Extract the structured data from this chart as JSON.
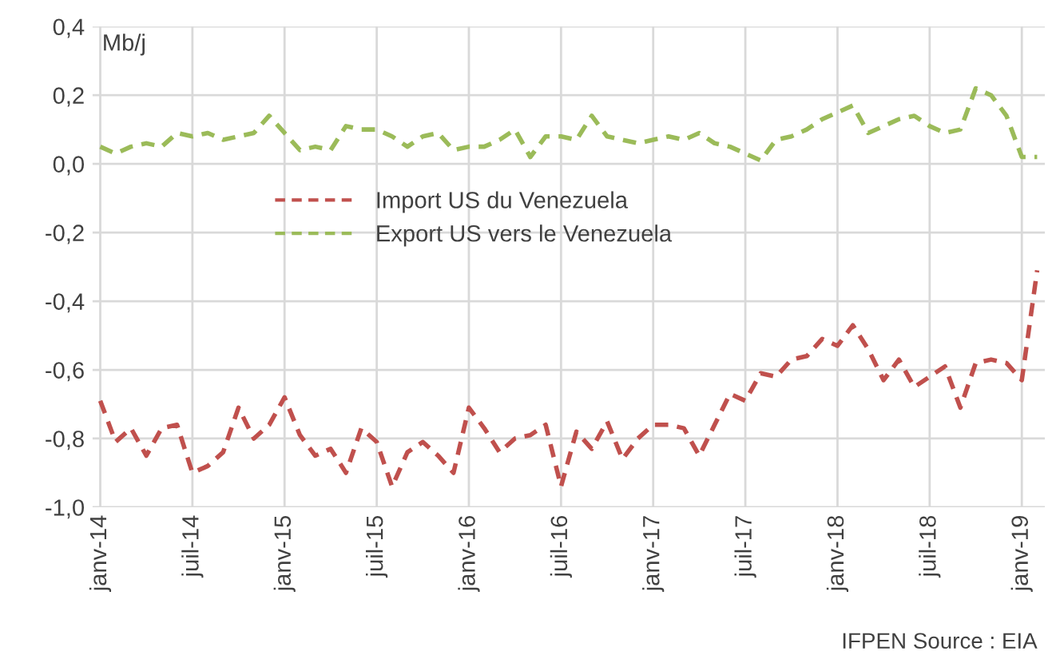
{
  "chart_data": {
    "type": "line",
    "ylabel": "Mb/j",
    "categories": [
      "janv-14",
      null,
      null,
      null,
      null,
      null,
      "juil-14",
      null,
      null,
      null,
      null,
      null,
      "janv-15",
      null,
      null,
      null,
      null,
      null,
      "juil-15",
      null,
      null,
      null,
      null,
      null,
      "janv-16",
      null,
      null,
      null,
      null,
      null,
      "juil-16",
      null,
      null,
      null,
      null,
      null,
      "janv-17",
      null,
      null,
      null,
      null,
      null,
      "juil-17",
      null,
      null,
      null,
      null,
      null,
      "janv-18",
      null,
      null,
      null,
      null,
      null,
      "juil-18",
      null,
      null,
      null,
      null,
      null,
      "janv-19",
      null
    ],
    "series": [
      {
        "name": "Import US du Venezuela",
        "color": "#c0504d",
        "values": [
          -0.69,
          -0.81,
          -0.77,
          -0.85,
          -0.77,
          -0.76,
          -0.9,
          -0.88,
          -0.84,
          -0.71,
          -0.8,
          -0.76,
          -0.68,
          -0.79,
          -0.85,
          -0.83,
          -0.9,
          -0.77,
          -0.81,
          -0.94,
          -0.84,
          -0.81,
          -0.85,
          -0.9,
          -0.71,
          -0.77,
          -0.84,
          -0.8,
          -0.79,
          -0.76,
          -0.94,
          -0.78,
          -0.83,
          -0.75,
          -0.86,
          -0.8,
          -0.76,
          -0.76,
          -0.77,
          -0.85,
          -0.76,
          -0.67,
          -0.69,
          -0.61,
          -0.62,
          -0.57,
          -0.56,
          -0.51,
          -0.53,
          -0.47,
          -0.54,
          -0.63,
          -0.57,
          -0.65,
          -0.62,
          -0.59,
          -0.71,
          -0.58,
          -0.57,
          -0.58,
          -0.63,
          -0.31
        ]
      },
      {
        "name": "Export US vers le Venezuela",
        "color": "#9bbb59",
        "values": [
          0.05,
          0.03,
          0.05,
          0.06,
          0.05,
          0.09,
          0.08,
          0.09,
          0.07,
          0.08,
          0.09,
          0.14,
          0.09,
          0.04,
          0.05,
          0.04,
          0.11,
          0.1,
          0.1,
          0.08,
          0.05,
          0.08,
          0.09,
          0.04,
          0.05,
          0.05,
          0.07,
          0.1,
          0.02,
          0.08,
          0.08,
          0.07,
          0.14,
          0.08,
          0.07,
          0.06,
          0.07,
          0.08,
          0.07,
          0.09,
          0.06,
          0.05,
          0.03,
          0.01,
          0.07,
          0.08,
          0.1,
          0.13,
          0.15,
          0.17,
          0.09,
          0.11,
          0.13,
          0.14,
          0.11,
          0.09,
          0.1,
          0.22,
          0.2,
          0.14,
          0.02,
          0.02
        ]
      }
    ],
    "ylim": [
      -1.0,
      0.4
    ],
    "yticks": [
      {
        "value": -1.0,
        "label": "-1,0"
      },
      {
        "value": -0.8,
        "label": "-0,8"
      },
      {
        "value": -0.6,
        "label": "-0,6"
      },
      {
        "value": -0.4,
        "label": "-0,4"
      },
      {
        "value": -0.2,
        "label": "-0,2"
      },
      {
        "value": 0.0,
        "label": "0,0"
      },
      {
        "value": 0.2,
        "label": "0,2"
      },
      {
        "value": 0.4,
        "label": "0,4"
      }
    ],
    "grid": true,
    "legend": "center",
    "line_style": "dashed",
    "marker": "none",
    "annotations": [
      "IFPEN Source : EIA"
    ]
  }
}
